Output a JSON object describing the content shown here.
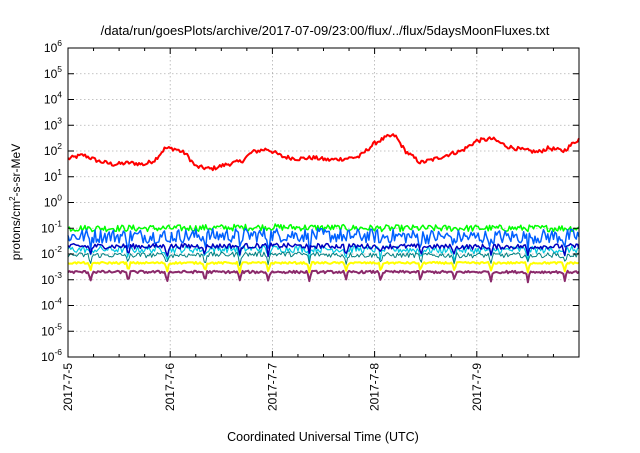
{
  "chart_data": {
    "type": "line",
    "title": "/data/run/goesPlots/archive/2017-07-09/23:00/flux/../flux/5daysMoonFluxes.txt",
    "xlabel": "Coordinated Universal Time (UTC)",
    "ylabel": "protons/cm2-s-sr-MeV",
    "ylabel_parts": {
      "base": "protons/cm",
      "sup": "2",
      "rest": "-s-sr-MeV"
    },
    "yscale": "log",
    "ylim": [
      1e-06,
      1000000.0
    ],
    "xlim": [
      0,
      5
    ],
    "x_ticks": [
      {
        "value": 0,
        "label": "2017-7-5"
      },
      {
        "value": 1,
        "label": "2017-7-6"
      },
      {
        "value": 2,
        "label": "2017-7-7"
      },
      {
        "value": 3,
        "label": "2017-7-8"
      },
      {
        "value": 4,
        "label": "2017-7-9"
      }
    ],
    "y_ticks": [
      {
        "value": -6,
        "base": "10",
        "exp": "-6"
      },
      {
        "value": -5,
        "base": "10",
        "exp": "-5"
      },
      {
        "value": -4,
        "base": "10",
        "exp": "-4"
      },
      {
        "value": -3,
        "base": "10",
        "exp": "-3"
      },
      {
        "value": -2,
        "base": "10",
        "exp": "-2"
      },
      {
        "value": -1,
        "base": "10",
        "exp": "-1"
      },
      {
        "value": 0,
        "base": "10",
        "exp": "0"
      },
      {
        "value": 1,
        "base": "10",
        "exp": "1"
      },
      {
        "value": 2,
        "base": "10",
        "exp": "2"
      },
      {
        "value": 3,
        "base": "10",
        "exp": "3"
      },
      {
        "value": 4,
        "base": "10",
        "exp": "4"
      },
      {
        "value": 5,
        "base": "10",
        "exp": "5"
      },
      {
        "value": 6,
        "base": "10",
        "exp": "6"
      }
    ],
    "grid": true,
    "series": [
      {
        "color": "#ff0000",
        "width": 2.0,
        "amp": 0.08,
        "dips": false,
        "x": [
          0,
          0.15,
          0.3,
          0.45,
          0.6,
          0.75,
          0.85,
          0.95,
          1.05,
          1.15,
          1.25,
          1.4,
          1.55,
          1.7,
          1.8,
          1.95,
          2.1,
          2.25,
          2.4,
          2.55,
          2.7,
          2.85,
          3.0,
          3.12,
          3.2,
          3.3,
          3.45,
          3.6,
          3.75,
          3.85,
          4.0,
          4.15,
          4.3,
          4.45,
          4.6,
          4.7,
          4.85,
          5.0
        ],
        "y": [
          50,
          70,
          40,
          30,
          35,
          30,
          45,
          130,
          120,
          80,
          25,
          20,
          30,
          40,
          90,
          120,
          60,
          50,
          55,
          45,
          50,
          60,
          200,
          350,
          400,
          100,
          35,
          50,
          80,
          100,
          250,
          300,
          150,
          110,
          90,
          130,
          100,
          300
        ]
      },
      {
        "color": "#00ff00",
        "width": 1.5,
        "amp": 0.13,
        "dips": false,
        "x": [
          0,
          1,
          2,
          3,
          4,
          5
        ],
        "y": [
          0.1,
          0.1,
          0.11,
          0.1,
          0.1,
          0.1
        ]
      },
      {
        "color": "#0060ff",
        "width": 1.5,
        "amp": 0.28,
        "dips": true,
        "x": [
          0,
          1,
          2,
          3,
          4,
          5
        ],
        "y": [
          0.05,
          0.05,
          0.055,
          0.05,
          0.045,
          0.05
        ]
      },
      {
        "color": "#00c8e0",
        "width": 1.2,
        "amp": 0.14,
        "dips": true,
        "x": [
          0,
          1,
          2,
          3,
          4,
          5
        ],
        "y": [
          0.015,
          0.015,
          0.016,
          0.015,
          0.014,
          0.015
        ]
      },
      {
        "color": "#0000c0",
        "width": 1.5,
        "amp": 0.1,
        "dips": true,
        "x": [
          0,
          1,
          2,
          3,
          4,
          5
        ],
        "y": [
          0.02,
          0.02,
          0.021,
          0.02,
          0.019,
          0.02
        ]
      },
      {
        "color": "#008080",
        "width": 1.0,
        "amp": 0.1,
        "dips": true,
        "x": [
          0,
          1,
          2,
          3,
          4,
          5
        ],
        "y": [
          0.009,
          0.009,
          0.01,
          0.009,
          0.009,
          0.009
        ]
      },
      {
        "color": "#ffff00",
        "width": 2.0,
        "amp": 0.04,
        "dips": true,
        "x": [
          0,
          1,
          2,
          3,
          4,
          5
        ],
        "y": [
          0.0045,
          0.0045,
          0.0045,
          0.0045,
          0.0045,
          0.0045
        ]
      },
      {
        "color": "#8b2a6b",
        "width": 2.0,
        "amp": 0.05,
        "dips": true,
        "x": [
          0,
          1,
          2,
          3,
          4,
          5
        ],
        "y": [
          0.002,
          0.002,
          0.002,
          0.002,
          0.002,
          0.002
        ]
      }
    ],
    "dip_positions": [
      0.22,
      0.59,
      0.97,
      1.34,
      1.68,
      1.96,
      2.36,
      2.72,
      3.06,
      3.45,
      3.78,
      4.14,
      4.5,
      4.86
    ]
  }
}
